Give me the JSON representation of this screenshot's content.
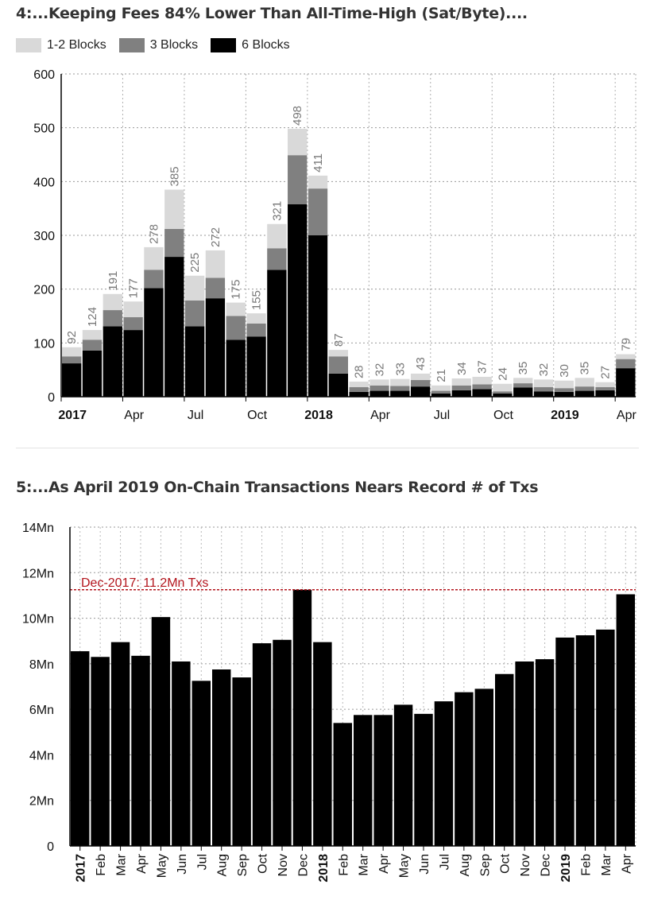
{
  "charts": [
    {
      "title": "4:...Keeping Fees 84% Lower Than All-Time-High (Sat/Byte)....",
      "type": "stacked-bar",
      "legend": [
        {
          "name": "1-2 Blocks",
          "color": "#d9d9d9"
        },
        {
          "name": "3 Blocks",
          "color": "#808080"
        },
        {
          "name": "6 Blocks",
          "color": "#000000"
        }
      ],
      "y_ticks": [
        "0",
        "100",
        "200",
        "300",
        "400",
        "500",
        "600"
      ],
      "ylim": [
        0,
        600
      ],
      "x_ticks": [
        {
          "label": "2017",
          "index": 0,
          "bold": true
        },
        {
          "label": "Apr",
          "index": 3,
          "bold": false
        },
        {
          "label": "Jul",
          "index": 6,
          "bold": false
        },
        {
          "label": "Oct",
          "index": 9,
          "bold": false
        },
        {
          "label": "2018",
          "index": 12,
          "bold": true
        },
        {
          "label": "Apr",
          "index": 15,
          "bold": false
        },
        {
          "label": "Jul",
          "index": 18,
          "bold": false
        },
        {
          "label": "Oct",
          "index": 21,
          "bold": false
        },
        {
          "label": "2019",
          "index": 24,
          "bold": true
        },
        {
          "label": "Apr",
          "index": 27,
          "bold": false
        }
      ],
      "series": [
        {
          "name": "6 Blocks",
          "color": "#000000",
          "values": [
            62,
            86,
            131,
            124,
            202,
            260,
            131,
            183,
            106,
            112,
            236,
            358,
            300,
            43,
            9,
            11,
            11,
            19,
            6,
            12,
            14,
            6,
            17,
            10,
            9,
            11,
            12,
            53
          ]
        },
        {
          "name": "3 Blocks",
          "color": "#808080",
          "values": [
            13,
            20,
            30,
            24,
            34,
            52,
            48,
            38,
            44,
            24,
            40,
            91,
            87,
            32,
            9,
            10,
            9,
            12,
            5,
            9,
            9,
            4,
            8,
            8,
            7,
            8,
            6,
            17
          ]
        },
        {
          "name": "1-2 Blocks",
          "color": "#d9d9d9",
          "values": [
            17,
            18,
            30,
            29,
            42,
            73,
            46,
            51,
            25,
            19,
            45,
            49,
            24,
            12,
            10,
            11,
            13,
            12,
            10,
            13,
            14,
            14,
            10,
            14,
            14,
            16,
            9,
            9
          ]
        }
      ],
      "totals": [
        92,
        124,
        191,
        177,
        278,
        385,
        225,
        272,
        175,
        155,
        321,
        498,
        411,
        87,
        28,
        32,
        33,
        43,
        21,
        34,
        37,
        24,
        35,
        32,
        30,
        35,
        27,
        79
      ]
    },
    {
      "title": "5:...As April 2019 On-Chain Transactions Nears Record # of Txs",
      "type": "bar",
      "y_ticks": [
        "0",
        "2Mn",
        "4Mn",
        "6Mn",
        "8Mn",
        "10Mn",
        "12Mn",
        "14Mn"
      ],
      "ylim": [
        0,
        14
      ],
      "categories": [
        {
          "label": "2017",
          "bold": true
        },
        {
          "label": "Feb",
          "bold": false
        },
        {
          "label": "Mar",
          "bold": false
        },
        {
          "label": "Apr",
          "bold": false
        },
        {
          "label": "May",
          "bold": false
        },
        {
          "label": "Jun",
          "bold": false
        },
        {
          "label": "Jul",
          "bold": false
        },
        {
          "label": "Aug",
          "bold": false
        },
        {
          "label": "Sep",
          "bold": false
        },
        {
          "label": "Oct",
          "bold": false
        },
        {
          "label": "Nov",
          "bold": false
        },
        {
          "label": "Dec",
          "bold": false
        },
        {
          "label": "2018",
          "bold": true
        },
        {
          "label": "Feb",
          "bold": false
        },
        {
          "label": "Mar",
          "bold": false
        },
        {
          "label": "Apr",
          "bold": false
        },
        {
          "label": "May",
          "bold": false
        },
        {
          "label": "Jun",
          "bold": false
        },
        {
          "label": "Jul",
          "bold": false
        },
        {
          "label": "Aug",
          "bold": false
        },
        {
          "label": "Sep",
          "bold": false
        },
        {
          "label": "Oct",
          "bold": false
        },
        {
          "label": "Nov",
          "bold": false
        },
        {
          "label": "Dec",
          "bold": false
        },
        {
          "label": "2019",
          "bold": true
        },
        {
          "label": "Feb",
          "bold": false
        },
        {
          "label": "Mar",
          "bold": false
        },
        {
          "label": "Apr",
          "bold": false
        }
      ],
      "values": [
        8.55,
        8.3,
        8.95,
        8.35,
        10.05,
        8.1,
        7.25,
        7.75,
        7.4,
        8.9,
        9.05,
        11.25,
        8.95,
        5.4,
        5.75,
        5.75,
        6.2,
        5.8,
        6.35,
        6.75,
        6.9,
        7.55,
        8.1,
        8.2,
        9.15,
        9.25,
        9.5,
        11.05
      ],
      "unit": "Mn",
      "bar_color": "#000000",
      "reference_line": {
        "value": 11.25,
        "label": "Dec-2017: 11.2Mn Txs",
        "color": "#b3141c"
      }
    }
  ]
}
